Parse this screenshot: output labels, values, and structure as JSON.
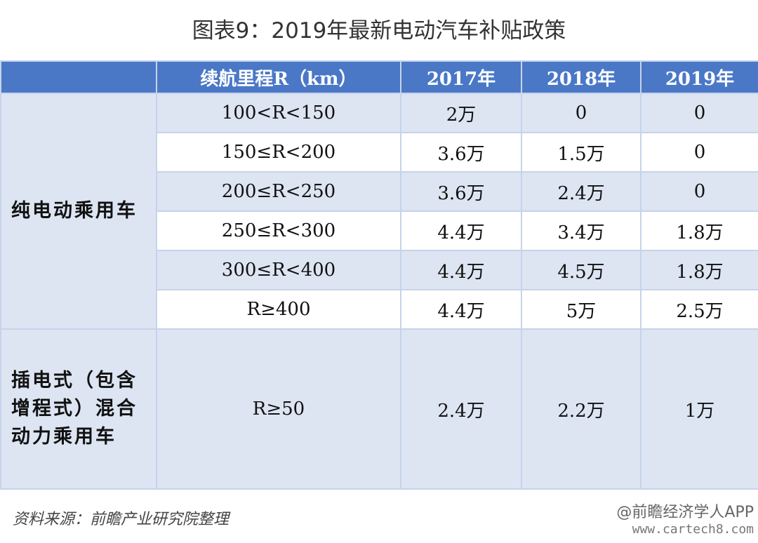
{
  "title": "图表9：2019年最新电动汽车补贴政策",
  "table": {
    "headers": [
      "",
      "续航里程R（km）",
      "2017年",
      "2018年",
      "2019年"
    ],
    "category1": "纯电动乘用车",
    "category2": "插电式（包含增程式）混合动力乘用车",
    "rows1": [
      {
        "range": "100<R<150",
        "y2017": "2万",
        "y2018": "0",
        "y2019": "0"
      },
      {
        "range": "150≤R<200",
        "y2017": "3.6万",
        "y2018": "1.5万",
        "y2019": "0"
      },
      {
        "range": "200≤R<250",
        "y2017": "3.6万",
        "y2018": "2.4万",
        "y2019": "0"
      },
      {
        "range": "250≤R<300",
        "y2017": "4.4万",
        "y2018": "3.4万",
        "y2019": "1.8万"
      },
      {
        "range": "300≤R<400",
        "y2017": "4.4万",
        "y2018": "4.5万",
        "y2019": "1.8万"
      },
      {
        "range": "R≥400",
        "y2017": "4.4万",
        "y2018": "5万",
        "y2019": "2.5万"
      }
    ],
    "row2": {
      "range": "R≥50",
      "y2017": "2.4万",
      "y2018": "2.2万",
      "y2019": "1万"
    }
  },
  "source": "资料来源：前瞻产业研究院整理",
  "watermark": {
    "line1": "@前瞻经济学人APP",
    "line2": "www.cartech8.com"
  },
  "colors": {
    "header": "#4a78c7",
    "light_row": "#dde5f3",
    "border": "#c6d3ea"
  }
}
